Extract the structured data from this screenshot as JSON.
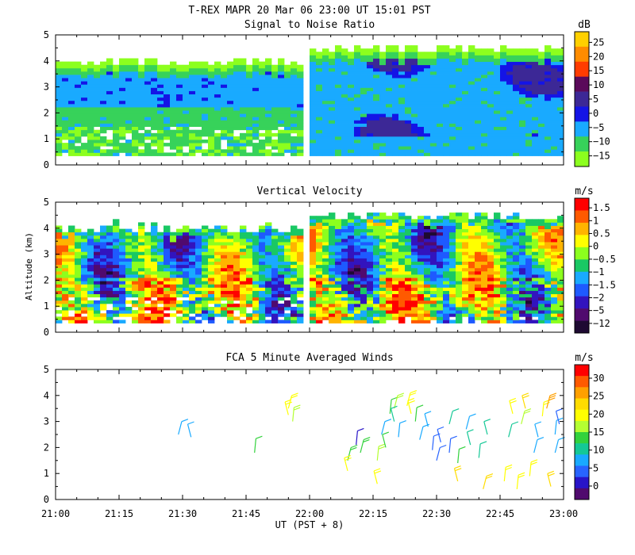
{
  "header": {
    "title": "T-REX   MAPR 20 Mar 06   23:00 UT   15:01   PST"
  },
  "x_axis": {
    "label": "UT  (PST + 8)",
    "ticks": [
      "21:00",
      "21:15",
      "21:30",
      "21:45",
      "22:00",
      "22:15",
      "22:30",
      "22:45",
      "23:00"
    ],
    "range_minutes": [
      0,
      120
    ]
  },
  "y_axis": {
    "label": "Altitude (km)",
    "ticks": [
      "0",
      "1",
      "2",
      "3",
      "4",
      "5"
    ],
    "range_km": [
      0,
      5
    ]
  },
  "chart_data": [
    {
      "type": "heatmap",
      "title": "Signal to Noise Ratio",
      "unit": "dB",
      "colorbar": {
        "labels": [
          "25",
          "20",
          "15",
          "10",
          "5",
          "0",
          "−5",
          "−10",
          "−15"
        ],
        "colors": [
          "#ffd000",
          "#ff8c00",
          "#ff3c00",
          "#5a0a5a",
          "#3c2896",
          "#1414e6",
          "#19aaff",
          "#37d25a",
          "#8cff1e"
        ]
      },
      "xlim": [
        0,
        120
      ],
      "ylim": [
        0,
        5
      ],
      "data_gaps_minutes": [
        [
          58,
          60
        ]
      ],
      "approx_top_km": {
        "left_segment": 3.9,
        "right_segment": 4.4
      }
    },
    {
      "type": "heatmap",
      "title": "Vertical Velocity",
      "unit": "m/s",
      "colorbar": {
        "labels": [
          "1.5",
          "1",
          "0.5",
          "0",
          "−0.5",
          "−1",
          "−1.5",
          "−2",
          "−5",
          "−12"
        ],
        "colors": [
          "#ff0000",
          "#ff5a00",
          "#ffb400",
          "#ffff00",
          "#8cff1e",
          "#19c864",
          "#19aaff",
          "#1e5aff",
          "#3214be",
          "#500a6e",
          "#1e0a32"
        ]
      },
      "xlim": [
        0,
        120
      ],
      "ylim": [
        0,
        5
      ],
      "data_gaps_minutes": [
        [
          58,
          60
        ]
      ],
      "approx_top_km": {
        "left_segment": 3.9,
        "right_segment": 4.4
      }
    },
    {
      "type": "scatter",
      "title": "FCA 5 Minute Averaged Winds",
      "unit": "m/s",
      "colorbar": {
        "labels": [
          "30",
          "25",
          "20",
          "15",
          "10",
          "5",
          "0"
        ],
        "colors": [
          "#ff0000",
          "#ff5a00",
          "#ffa000",
          "#ffdc00",
          "#ffff00",
          "#b4ff32",
          "#32d23c",
          "#14c896",
          "#19aaff",
          "#2864ff",
          "#2814c8",
          "#500a6e"
        ]
      },
      "xlim": [
        0,
        120
      ],
      "ylim": [
        0,
        5
      ],
      "barbs": [
        {
          "t": 29,
          "h": 2.5,
          "speed": 9
        },
        {
          "t": 32,
          "h": 2.4,
          "speed": 10
        },
        {
          "t": 47,
          "h": 1.8,
          "speed": 14
        },
        {
          "t": 55,
          "h": 3.5,
          "speed": 21
        },
        {
          "t": 55,
          "h": 3.25,
          "speed": 19
        },
        {
          "t": 56,
          "h": 3.0,
          "speed": 17
        },
        {
          "t": 69,
          "h": 1.5,
          "speed": 15
        },
        {
          "t": 69,
          "h": 1.1,
          "speed": 21
        },
        {
          "t": 71,
          "h": 2.1,
          "speed": 4
        },
        {
          "t": 72,
          "h": 1.8,
          "speed": 15
        },
        {
          "t": 76,
          "h": 0.6,
          "speed": 21
        },
        {
          "t": 76,
          "h": 1.5,
          "speed": 17
        },
        {
          "t": 77,
          "h": 2.5,
          "speed": 9
        },
        {
          "t": 78,
          "h": 2.0,
          "speed": 14
        },
        {
          "t": 79,
          "h": 3.3,
          "speed": 14
        },
        {
          "t": 80,
          "h": 3.5,
          "speed": 18
        },
        {
          "t": 80,
          "h": 3.0,
          "speed": 11
        },
        {
          "t": 81,
          "h": 2.4,
          "speed": 9
        },
        {
          "t": 83,
          "h": 3.6,
          "speed": 21
        },
        {
          "t": 84,
          "h": 3.3,
          "speed": 19
        },
        {
          "t": 85,
          "h": 3.0,
          "speed": 14
        },
        {
          "t": 86,
          "h": 2.3,
          "speed": 9
        },
        {
          "t": 88,
          "h": 2.8,
          "speed": 10
        },
        {
          "t": 89,
          "h": 1.9,
          "speed": 7
        },
        {
          "t": 90,
          "h": 1.5,
          "speed": 6
        },
        {
          "t": 91,
          "h": 2.2,
          "speed": 5
        },
        {
          "t": 93,
          "h": 1.8,
          "speed": 6
        },
        {
          "t": 93,
          "h": 2.9,
          "speed": 11
        },
        {
          "t": 95,
          "h": 0.7,
          "speed": 22
        },
        {
          "t": 95,
          "h": 1.4,
          "speed": 14
        },
        {
          "t": 97,
          "h": 2.7,
          "speed": 9
        },
        {
          "t": 98,
          "h": 2.1,
          "speed": 12
        },
        {
          "t": 100,
          "h": 1.6,
          "speed": 13
        },
        {
          "t": 101,
          "h": 0.4,
          "speed": 23
        },
        {
          "t": 102,
          "h": 2.5,
          "speed": 11
        },
        {
          "t": 106,
          "h": 0.7,
          "speed": 19
        },
        {
          "t": 107,
          "h": 2.4,
          "speed": 13
        },
        {
          "t": 108,
          "h": 3.3,
          "speed": 21
        },
        {
          "t": 109,
          "h": 0.4,
          "speed": 20
        },
        {
          "t": 110,
          "h": 2.9,
          "speed": 18
        },
        {
          "t": 111,
          "h": 3.5,
          "speed": 22
        },
        {
          "t": 112,
          "h": 0.9,
          "speed": 21
        },
        {
          "t": 113,
          "h": 1.8,
          "speed": 10
        },
        {
          "t": 114,
          "h": 2.4,
          "speed": 9
        },
        {
          "t": 115,
          "h": 3.2,
          "speed": 19
        },
        {
          "t": 116,
          "h": 3.5,
          "speed": 25
        },
        {
          "t": 117,
          "h": 0.5,
          "speed": 22
        },
        {
          "t": 118,
          "h": 2.5,
          "speed": 10
        },
        {
          "t": 118,
          "h": 1.8,
          "speed": 8
        },
        {
          "t": 119,
          "h": 2.9,
          "speed": 6
        }
      ]
    }
  ]
}
